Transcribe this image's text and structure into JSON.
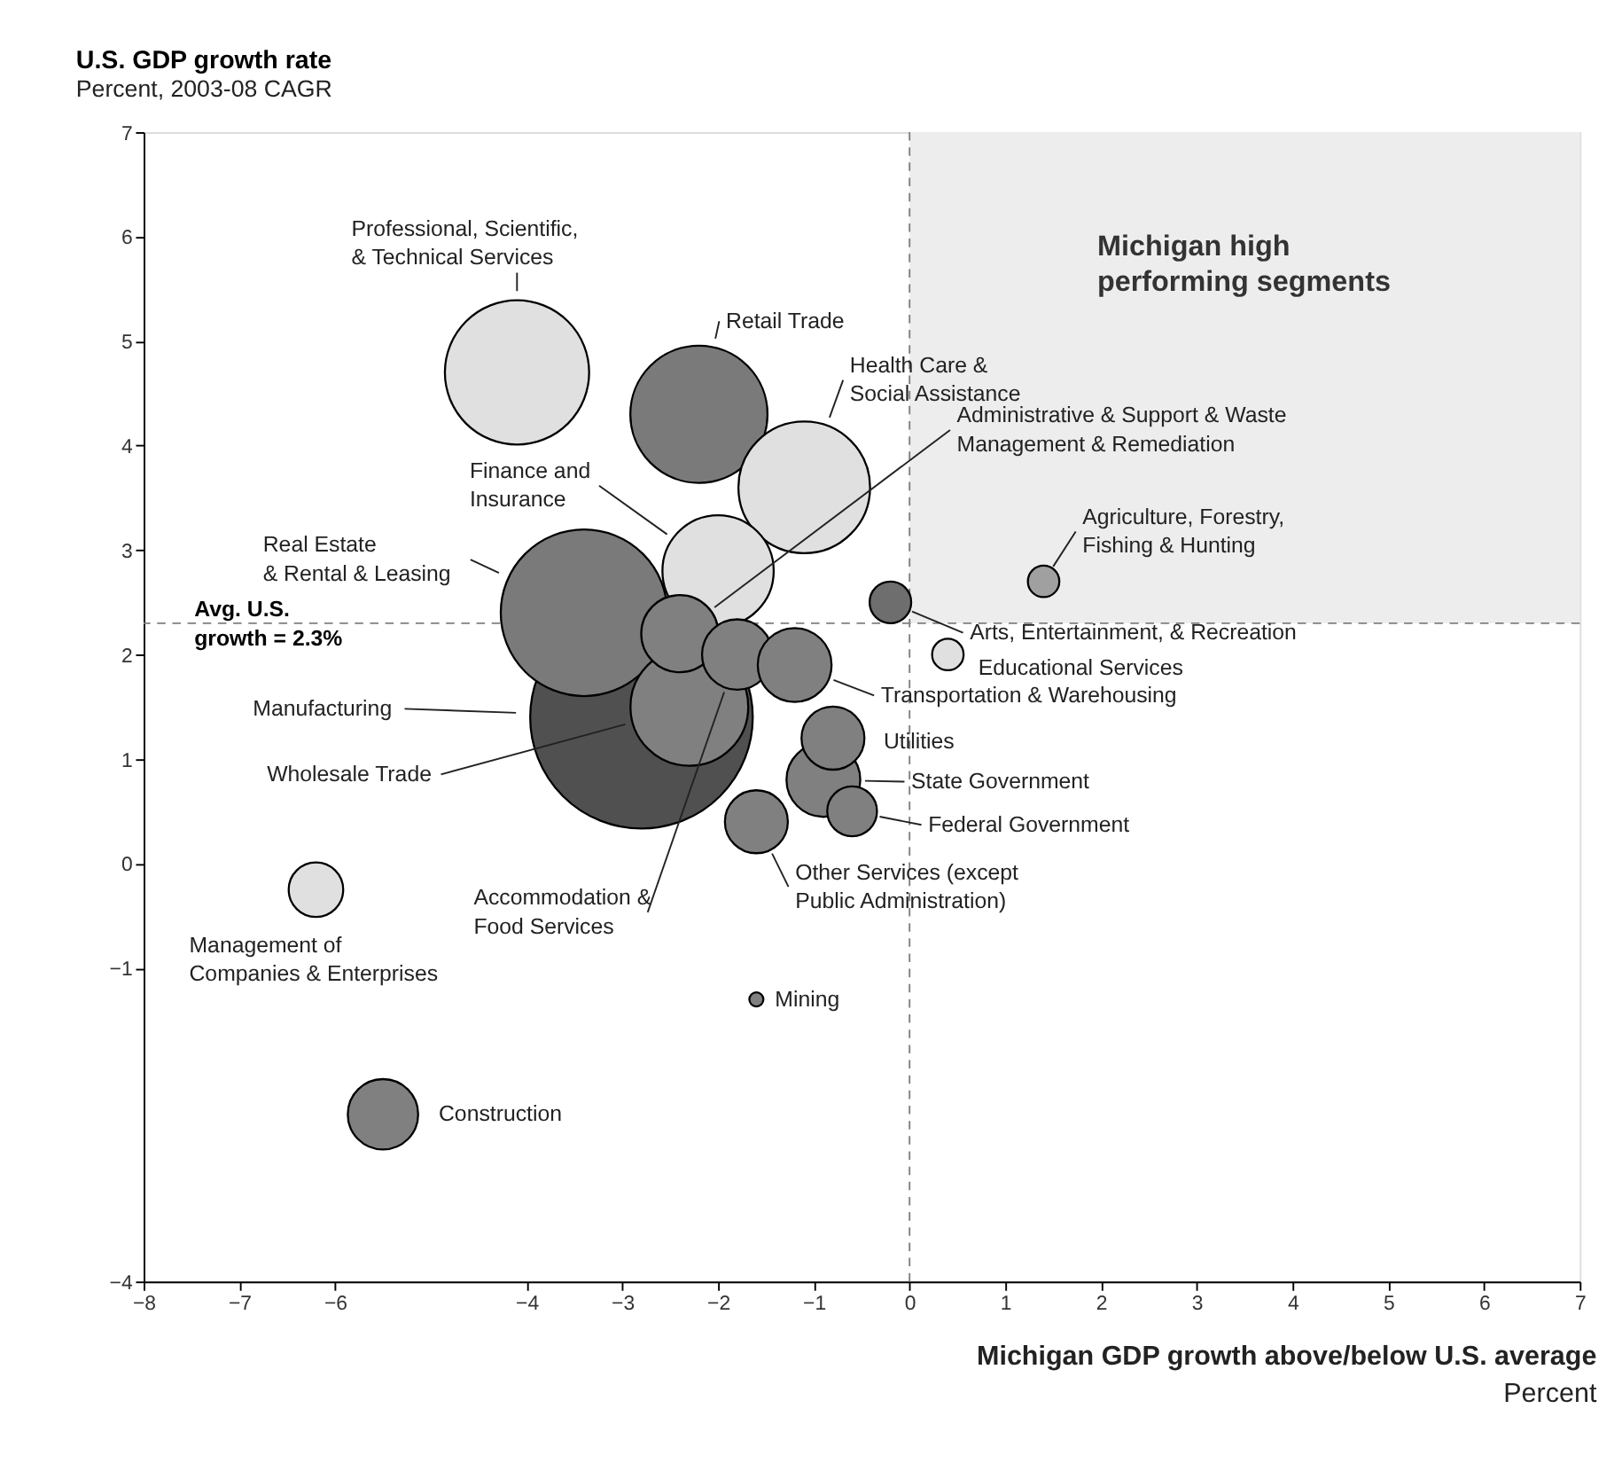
{
  "chart_data": {
    "type": "bubble",
    "title": "U.S. GDP growth rate",
    "subtitle": "Percent, 2003-08 CAGR",
    "xlabel": "Michigan GDP growth above/below U.S. average",
    "annotations": [
      "Percent"
    ],
    "xlim": [
      -8,
      7
    ],
    "xticks": [
      -8,
      -7,
      -6,
      -4,
      -3,
      -2,
      -1,
      0,
      1,
      2,
      3,
      4,
      5,
      6,
      7
    ],
    "ylim": [
      -4,
      7
    ],
    "yticks": [
      -4,
      -1,
      0,
      1,
      2,
      3,
      4,
      5,
      6,
      7
    ],
    "grid": false,
    "legend": false,
    "marker": "circle",
    "ref_lines": [
      {
        "axis": "x",
        "value": 0,
        "label": null,
        "color": "#808080",
        "line_style": "dashed"
      },
      {
        "axis": "y",
        "value": 2.3,
        "label": "Avg. U.S. growth = 2.3%",
        "color": "#808080",
        "line_style": "dashed"
      }
    ],
    "bands": [
      {
        "axis": "x",
        "from": 0,
        "to": 7,
        "label": "Michigan high performing segments",
        "color": "#ededed"
      }
    ],
    "series": [
      {
        "name": "Manufacturing",
        "color": "#505050",
        "x": [
          -2.8
        ],
        "values": [
          1.4
        ],
        "sizes": [
          1
        ]
      },
      {
        "name": "Real Estate & Rental & Leasing",
        "color": "#7a7a7a",
        "x": [
          -3.4
        ],
        "values": [
          2.4
        ],
        "sizes": [
          0.56
        ]
      },
      {
        "name": "Professional, Scientific, & Technical Services",
        "color": "#e0e0e0",
        "x": [
          -4.1
        ],
        "values": [
          4.7
        ],
        "sizes": [
          0.42
        ]
      },
      {
        "name": "Retail Trade",
        "color": "#7a7a7a",
        "x": [
          -2.2
        ],
        "values": [
          4.3
        ],
        "sizes": [
          0.38
        ]
      },
      {
        "name": "Health Care & Social Assistance",
        "color": "#e0e0e0",
        "x": [
          -1.1
        ],
        "values": [
          3.6
        ],
        "sizes": [
          0.35
        ]
      },
      {
        "name": "Finance and Insurance",
        "color": "#e0e0e0",
        "x": [
          -2.0
        ],
        "values": [
          2.8
        ],
        "sizes": [
          0.25
        ]
      },
      {
        "name": "Wholesale Trade",
        "color": "#808080",
        "x": [
          -2.3
        ],
        "values": [
          1.5
        ],
        "sizes": [
          0.28
        ]
      },
      {
        "name": "Administrative & Support & Waste Management & Remediation",
        "color": "#808080",
        "x": [
          -2.4
        ],
        "values": [
          2.2
        ],
        "sizes": [
          0.12
        ]
      },
      {
        "name": "Accommodation & Food Services",
        "color": "#808080",
        "x": [
          -1.8
        ],
        "values": [
          2.0
        ],
        "sizes": [
          0.1
        ]
      },
      {
        "name": "Transportation & Warehousing",
        "color": "#808080",
        "x": [
          -1.2
        ],
        "values": [
          1.9
        ],
        "sizes": [
          0.11
        ]
      },
      {
        "name": "Arts, Entertainment, & Recreation",
        "color": "#6e6e6e",
        "x": [
          -0.2
        ],
        "values": [
          2.5
        ],
        "sizes": [
          0.035
        ]
      },
      {
        "name": "Agriculture, Forestry, Fishing & Hunting",
        "color": "#a0a0a0",
        "x": [
          1.4
        ],
        "values": [
          2.7
        ],
        "sizes": [
          0.02
        ]
      },
      {
        "name": "Educational Services",
        "color": "#e0e0e0",
        "x": [
          0.4
        ],
        "values": [
          2.0
        ],
        "sizes": [
          0.02
        ]
      },
      {
        "name": "State Government",
        "color": "#808080",
        "x": [
          -0.9
        ],
        "values": [
          0.8
        ],
        "sizes": [
          0.11
        ]
      },
      {
        "name": "Utilities",
        "color": "#808080",
        "x": [
          -0.8
        ],
        "values": [
          1.2
        ],
        "sizes": [
          0.08
        ]
      },
      {
        "name": "Federal Government",
        "color": "#808080",
        "x": [
          -0.6
        ],
        "values": [
          0.5
        ],
        "sizes": [
          0.05
        ]
      },
      {
        "name": "Other Services (except Public Administration)",
        "color": "#808080",
        "x": [
          -1.6
        ],
        "values": [
          0.4
        ],
        "sizes": [
          0.08
        ]
      },
      {
        "name": "Mining",
        "color": "#808080",
        "x": [
          -1.6
        ],
        "values": [
          -1.3
        ],
        "sizes": [
          0.004
        ]
      },
      {
        "name": "Management of Companies & Enterprises",
        "color": "#e0e0e0",
        "x": [
          -6.2
        ],
        "values": [
          -0.25
        ],
        "sizes": [
          0.06
        ]
      },
      {
        "name": "Construction",
        "color": "#808080",
        "x": [
          -5.5
        ],
        "values": [
          -2.4
        ],
        "sizes": [
          0.1
        ]
      }
    ]
  }
}
